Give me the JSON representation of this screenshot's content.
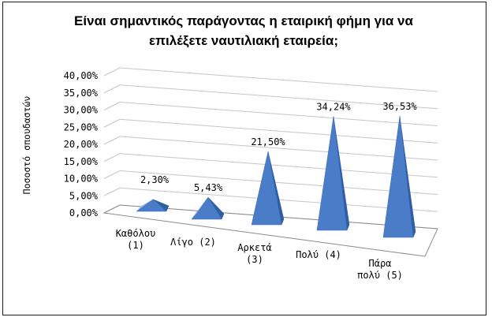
{
  "chart_data": {
    "type": "bar",
    "title_lines": [
      "Είναι σημαντικός παράγοντας η εταιρική φήμη για να",
      "επιλέξετε ναυτιλιακή εταιρεία;"
    ],
    "xlabel": "",
    "ylabel": "Ποσοστό σπουδαστών",
    "categories": [
      [
        "Καθόλου",
        "(1)"
      ],
      [
        "Λίγο (2)"
      ],
      [
        "Αρκετά",
        "(3)"
      ],
      [
        "Πολύ (4)"
      ],
      [
        "Πάρα",
        "πολύ (5)"
      ]
    ],
    "values": [
      2.3,
      5.43,
      21.5,
      34.24,
      36.53
    ],
    "data_labels": [
      "2,30%",
      "5,43%",
      "21,50%",
      "34,24%",
      "36,53%"
    ],
    "y_ticks": [
      "0,00%",
      "5,00%",
      "10,00%",
      "15,00%",
      "20,00%",
      "25,00%",
      "30,00%",
      "35,00%",
      "40,00%"
    ],
    "ylim": [
      0,
      40
    ],
    "grid": true,
    "legend": "none",
    "bar_shape": "3d-pyramid",
    "colors": {
      "bar_front": "#4a7cc8",
      "bar_side": "#2f5ea5",
      "bar_top": "#8fb0e0",
      "grid": "#c6c6c6",
      "axis": "#8a8a8a"
    }
  }
}
